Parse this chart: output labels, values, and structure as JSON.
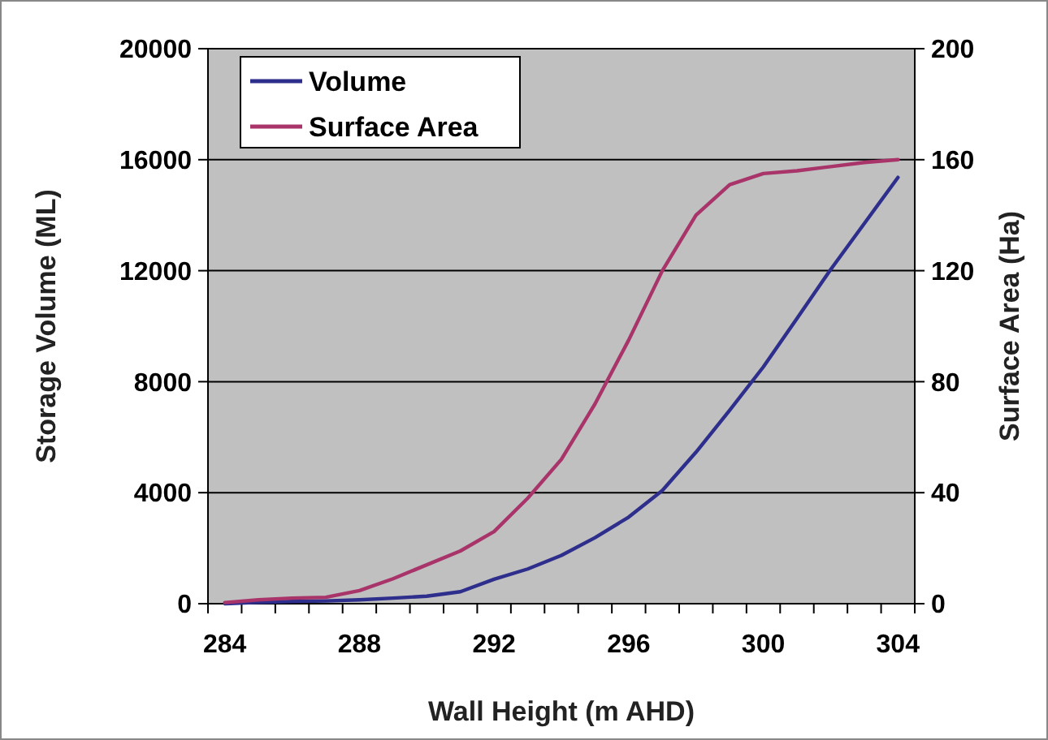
{
  "chart_data": {
    "type": "line",
    "xlabel": "Wall Height (m AHD)",
    "ylabel": "Storage Volume (ML)",
    "y2label": "Surface Area (Ha)",
    "categories": [
      "284",
      null,
      null,
      null,
      "288",
      null,
      null,
      null,
      "292",
      null,
      null,
      null,
      "296",
      null,
      null,
      null,
      "300",
      null,
      null,
      null,
      "304"
    ],
    "series": [
      {
        "name": "Volume",
        "color": "#2e2e8c",
        "values": [
          0,
          50,
          80,
          100,
          140,
          200,
          270,
          430,
          880,
          1250,
          1740,
          2380,
          3120,
          4080,
          5460,
          6970,
          8530,
          10280,
          12040,
          13700,
          15360
        ]
      },
      {
        "name": "Surface Area",
        "color": "#a8346a",
        "axis": "y2",
        "values": [
          0.4,
          1.4,
          2,
          2.3,
          4.7,
          9,
          14,
          19,
          26,
          38,
          52,
          72,
          95,
          120,
          140,
          151,
          155,
          156,
          157.5,
          159,
          160
        ]
      }
    ],
    "ylim": [
      0,
      20000
    ],
    "yticks": [
      0,
      4000,
      8000,
      12000,
      16000,
      20000
    ],
    "y2lim": [
      0,
      200
    ],
    "y2ticks": [
      0,
      40,
      80,
      120,
      160,
      200
    ],
    "grid": "y",
    "legend": "top left",
    "marker": "none",
    "line_style": "solid"
  }
}
